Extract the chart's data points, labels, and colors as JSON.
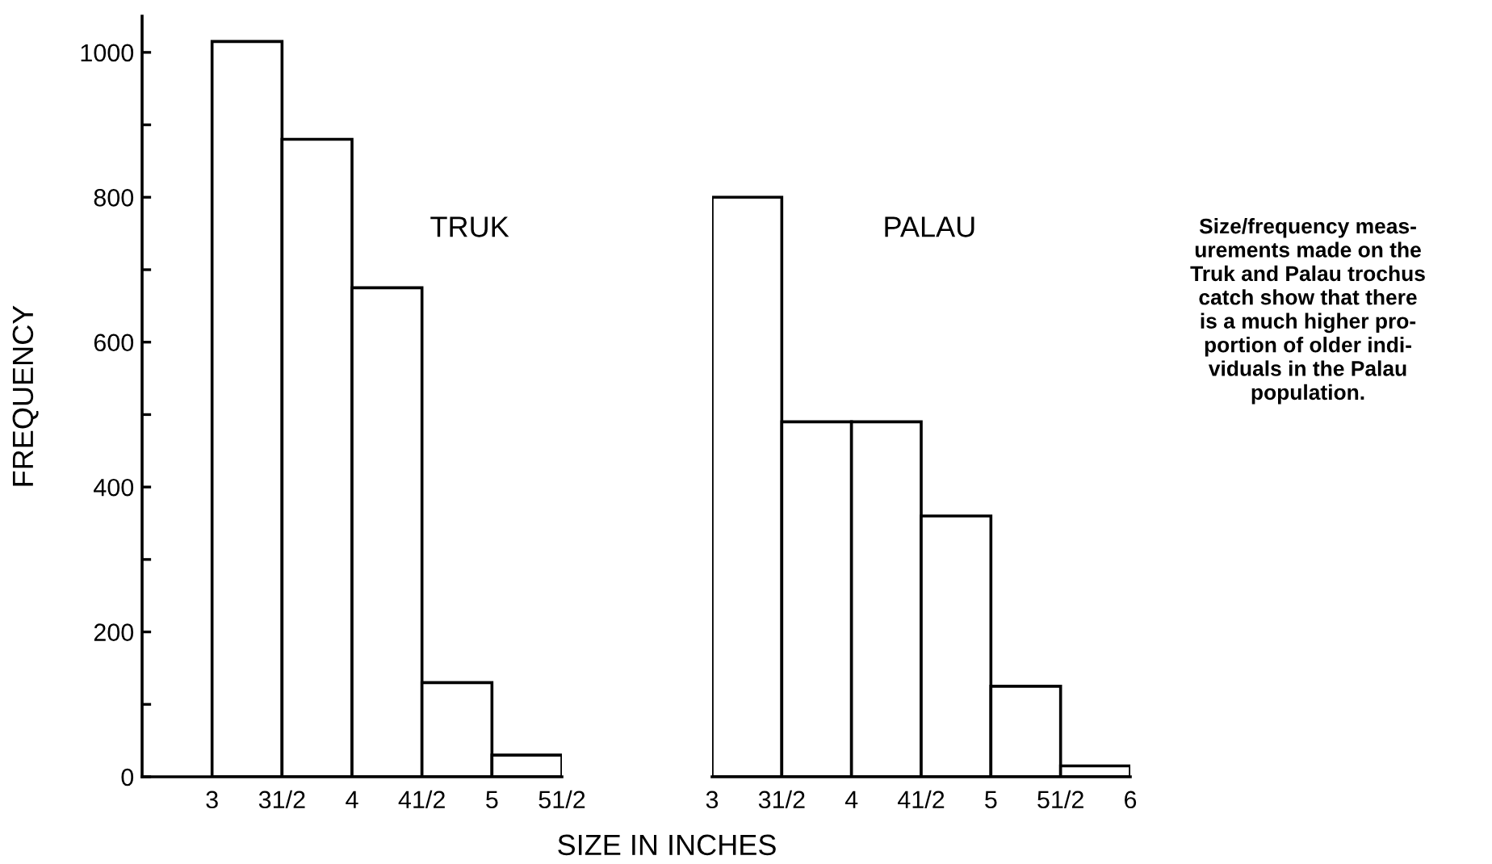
{
  "chart_data": [
    {
      "type": "histogram",
      "title": "TRUK",
      "ylabel": "FREQUENCY",
      "xlabel": "SIZE IN INCHES",
      "bins": [
        3,
        3.5,
        4,
        4.5,
        5,
        5.5
      ],
      "values": [
        1015,
        880,
        675,
        130,
        30
      ],
      "color": "#ffffff",
      "xlim": [
        2.5,
        5.5
      ],
      "xticks": [
        3,
        {
          "value": 3.5,
          "label": "31/2"
        },
        4,
        {
          "value": 4.5,
          "label": "41/2"
        },
        5,
        {
          "value": 5.5,
          "label": "51/2"
        }
      ],
      "ylim": [
        0,
        1050
      ],
      "yticks": [
        0,
        {
          "value": 100,
          "label": null
        },
        200,
        {
          "value": 300,
          "label": null
        },
        400,
        {
          "value": 500,
          "label": null
        },
        600,
        {
          "value": 700,
          "label": null
        },
        800,
        {
          "value": 900,
          "label": null
        },
        1000
      ],
      "grid": false,
      "legend": false
    },
    {
      "type": "histogram",
      "title": "PALAU",
      "bins": [
        3,
        3.5,
        4,
        4.5,
        5,
        5.5,
        6
      ],
      "values": [
        800,
        490,
        490,
        360,
        125,
        15
      ],
      "color": "#ffffff",
      "xlim": [
        3,
        6
      ],
      "xticks": [
        3,
        {
          "value": 3.5,
          "label": "31/2"
        },
        4,
        {
          "value": 4.5,
          "label": "41/2"
        },
        5,
        {
          "value": 5.5,
          "label": "51/2"
        },
        6
      ],
      "ylim": [
        0,
        1000
      ],
      "yticks": [
        0,
        200,
        400,
        600,
        800,
        1000
      ],
      "tick_labels": "x",
      "annotations": [
        "Size/frequency meas-\nurements made on the\nTruk and Palau trochus\ncatch show that there\nis a much higher pro-\nportion of older indi-\nviduals in the Palau\npopulation."
      ],
      "grid": false,
      "legend": false
    }
  ]
}
